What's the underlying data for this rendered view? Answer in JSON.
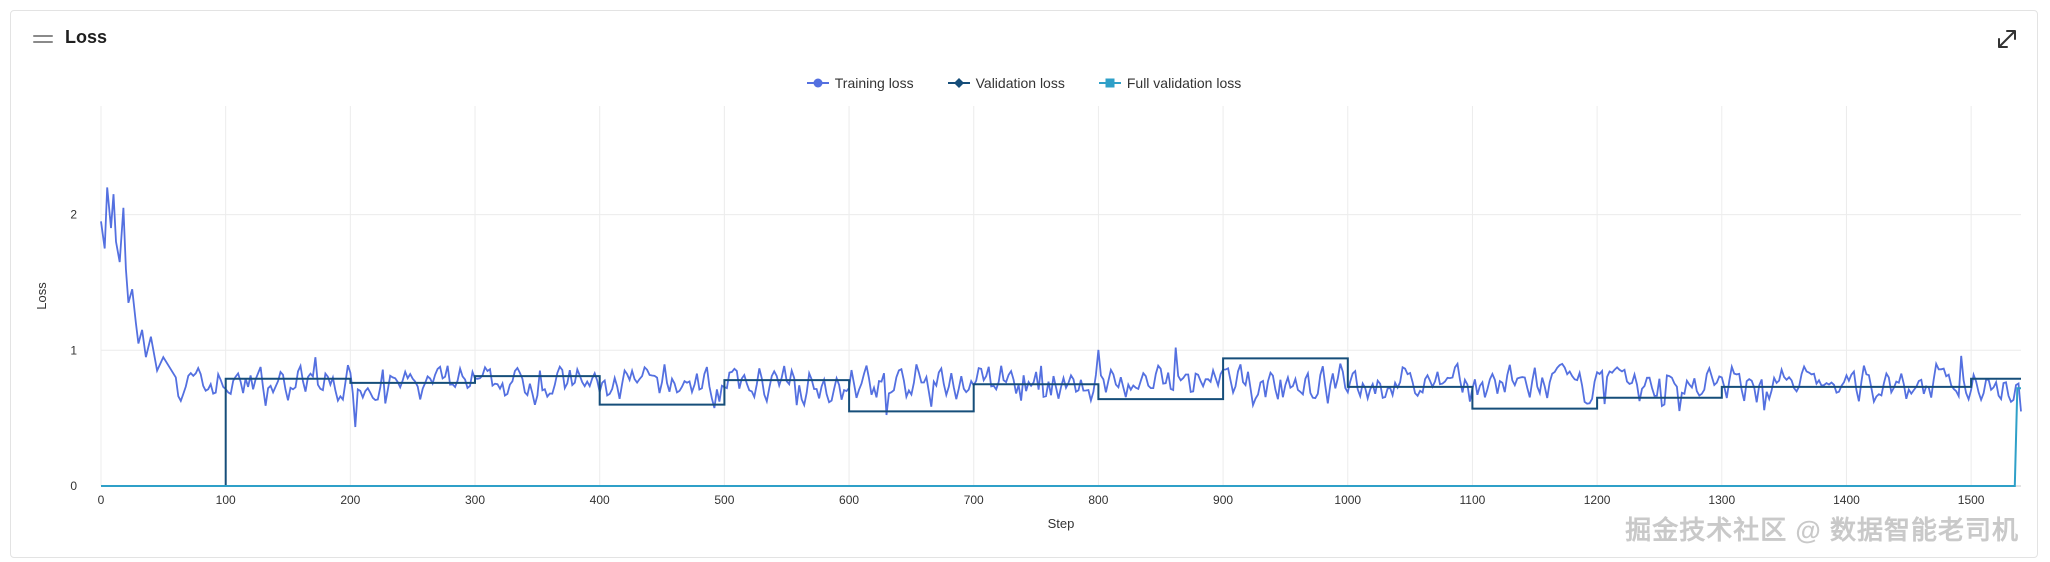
{
  "header": {
    "title": "Loss",
    "drag_icon": "drag-handle-icon",
    "expand_icon": "expand-icon"
  },
  "legend": [
    {
      "name": "Training loss",
      "color": "#5470e0",
      "marker": "circle"
    },
    {
      "name": "Validation loss",
      "color": "#164e7a",
      "marker": "diamond"
    },
    {
      "name": "Full validation loss",
      "color": "#2fa0c8",
      "marker": "square"
    }
  ],
  "watermark": "掘金技术社区 @ 数据智能老司机",
  "chart_data": {
    "type": "line",
    "xlabel": "Step",
    "ylabel": "Loss",
    "xlim": [
      0,
      1540
    ],
    "ylim": [
      0,
      2.8
    ],
    "xticks": [
      0,
      100,
      200,
      300,
      400,
      500,
      600,
      700,
      800,
      900,
      1000,
      1100,
      1200,
      1300,
      1400,
      1500
    ],
    "yticks": [
      0,
      1,
      2
    ],
    "grid": true,
    "legend_position": "top-center",
    "series": [
      {
        "name": "Training loss",
        "color": "#5470e0",
        "description_points": [
          [
            0,
            1.95
          ],
          [
            3,
            1.75
          ],
          [
            5,
            2.2
          ],
          [
            8,
            1.9
          ],
          [
            10,
            2.15
          ],
          [
            12,
            1.8
          ],
          [
            15,
            1.65
          ],
          [
            18,
            2.05
          ],
          [
            20,
            1.6
          ],
          [
            22,
            1.35
          ],
          [
            25,
            1.45
          ],
          [
            28,
            1.2
          ],
          [
            30,
            1.05
          ],
          [
            33,
            1.15
          ],
          [
            36,
            0.95
          ],
          [
            40,
            1.1
          ],
          [
            45,
            0.85
          ],
          [
            50,
            0.95
          ],
          [
            60,
            0.8
          ],
          [
            80,
            0.85
          ],
          [
            100,
            0.78
          ],
          [
            1540,
            0.72
          ]
        ],
        "steady_mean": 0.75,
        "steady_noise": 0.1
      },
      {
        "name": "Validation loss",
        "color": "#164e7a",
        "steps": [
          {
            "x": [
              100,
              200
            ],
            "y": 0.79
          },
          {
            "x": [
              200,
              300
            ],
            "y": 0.76
          },
          {
            "x": [
              300,
              400
            ],
            "y": 0.81
          },
          {
            "x": [
              400,
              500
            ],
            "y": 0.6
          },
          {
            "x": [
              500,
              600
            ],
            "y": 0.78
          },
          {
            "x": [
              600,
              700
            ],
            "y": 0.55
          },
          {
            "x": [
              700,
              800
            ],
            "y": 0.75
          },
          {
            "x": [
              800,
              900
            ],
            "y": 0.64
          },
          {
            "x": [
              900,
              1000
            ],
            "y": 0.94
          },
          {
            "x": [
              1000,
              1100
            ],
            "y": 0.73
          },
          {
            "x": [
              1100,
              1200
            ],
            "y": 0.57
          },
          {
            "x": [
              1200,
              1300
            ],
            "y": 0.65
          },
          {
            "x": [
              1300,
              1400
            ],
            "y": 0.73
          },
          {
            "x": [
              1400,
              1500
            ],
            "y": 0.73
          },
          {
            "x": [
              1500,
              1540
            ],
            "y": 0.79
          }
        ]
      },
      {
        "name": "Full validation loss",
        "color": "#2fa0c8",
        "x": [
          0,
          1535,
          1537,
          1540
        ],
        "y": [
          0,
          0,
          0.72,
          0.72
        ]
      }
    ]
  }
}
